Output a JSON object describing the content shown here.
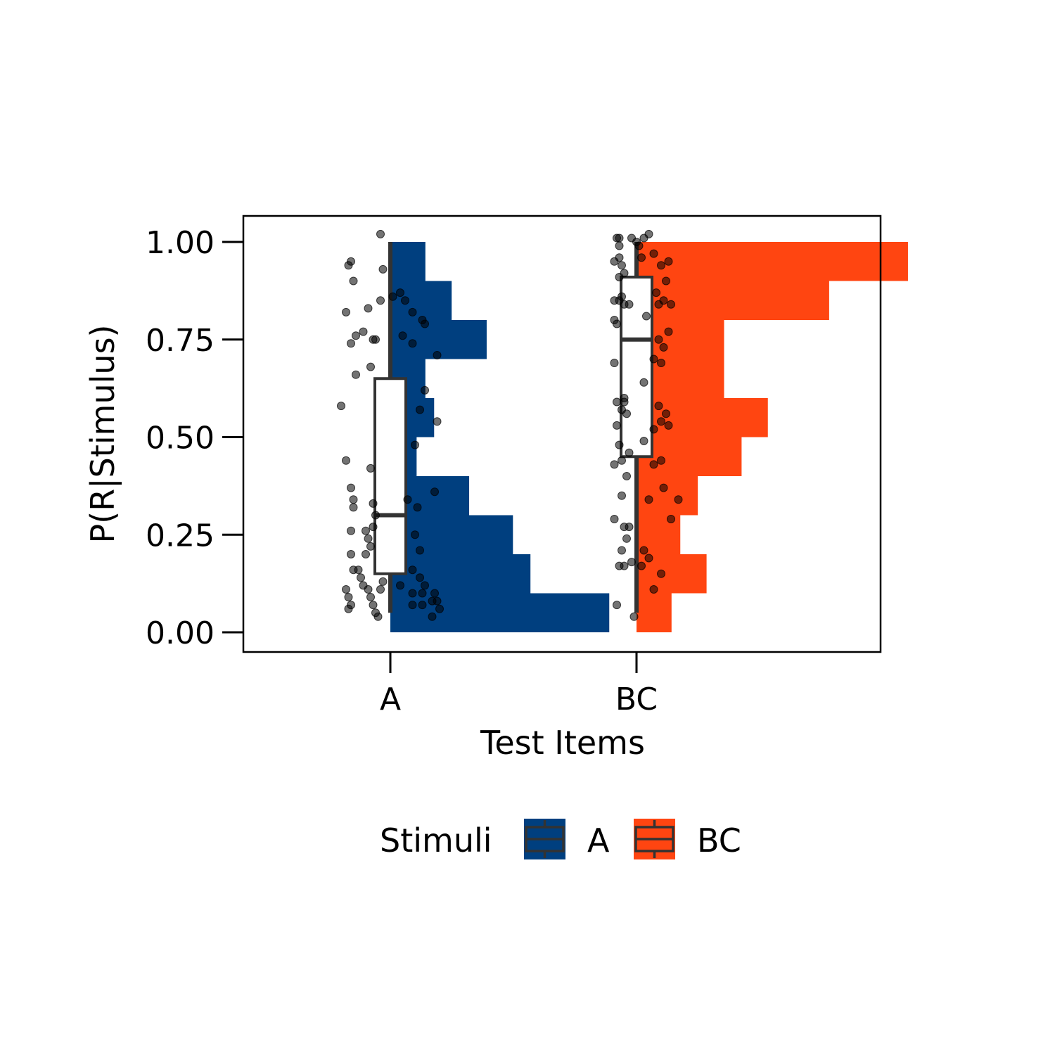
{
  "chart_data": {
    "type": "raincloud",
    "title": "",
    "xlabel": "Test Items",
    "ylabel": "P(R|Stimulus)",
    "ylim": [
      -0.05,
      1.07
    ],
    "yticks": [
      0.0,
      0.25,
      0.5,
      0.75,
      1.0
    ],
    "ytick_labels": [
      "0.00",
      "0.25",
      "0.50",
      "0.75",
      "1.00"
    ],
    "categories": [
      "A",
      "BC"
    ],
    "legend": {
      "title": "Stimuli",
      "placement": "bottom",
      "entries": [
        "A",
        "BC"
      ]
    },
    "series": [
      {
        "name": "A",
        "color": "#003f7f",
        "histogram": {
          "bin_edges": [
            0.0,
            0.1,
            0.2,
            0.3,
            0.4,
            0.5,
            0.6,
            0.7,
            0.8,
            0.9,
            1.0
          ],
          "counts": [
            25,
            16,
            14,
            9,
            3,
            5,
            4,
            11,
            7,
            4
          ]
        },
        "box": {
          "whisker_low": 0.05,
          "q1": 0.15,
          "median": 0.3,
          "q3": 0.65,
          "whisker_high": 1.0
        },
        "points": [
          {
            "x": -0.17,
            "y": 0.06
          },
          {
            "x": -0.16,
            "y": 0.07
          },
          {
            "x": -0.17,
            "y": 0.09
          },
          {
            "x": -0.18,
            "y": 0.11
          },
          {
            "x": -0.15,
            "y": 0.16
          },
          {
            "x": -0.13,
            "y": 0.16
          },
          {
            "x": -0.12,
            "y": 0.14
          },
          {
            "x": -0.11,
            "y": 0.12
          },
          {
            "x": -0.09,
            "y": 0.11
          },
          {
            "x": -0.08,
            "y": 0.09
          },
          {
            "x": -0.07,
            "y": 0.07
          },
          {
            "x": -0.05,
            "y": 0.04
          },
          {
            "x": -0.06,
            "y": 0.05
          },
          {
            "x": -0.04,
            "y": 0.11
          },
          {
            "x": -0.03,
            "y": 0.13
          },
          {
            "x": -0.1,
            "y": 0.2
          },
          {
            "x": -0.08,
            "y": 0.22
          },
          {
            "x": -0.09,
            "y": 0.24
          },
          {
            "x": -0.1,
            "y": 0.26
          },
          {
            "x": -0.07,
            "y": 0.27
          },
          {
            "x": -0.06,
            "y": 0.3
          },
          {
            "x": -0.16,
            "y": 0.26
          },
          {
            "x": -0.16,
            "y": 0.2
          },
          {
            "x": -0.15,
            "y": 0.32
          },
          {
            "x": -0.15,
            "y": 0.34
          },
          {
            "x": -0.16,
            "y": 0.37
          },
          {
            "x": -0.07,
            "y": 0.33
          },
          {
            "x": -0.18,
            "y": 0.44
          },
          {
            "x": -0.08,
            "y": 0.42
          },
          {
            "x": -0.2,
            "y": 0.58
          },
          {
            "x": -0.14,
            "y": 0.66
          },
          {
            "x": -0.08,
            "y": 0.68
          },
          {
            "x": -0.16,
            "y": 0.74
          },
          {
            "x": -0.14,
            "y": 0.76
          },
          {
            "x": -0.11,
            "y": 0.77
          },
          {
            "x": -0.07,
            "y": 0.75
          },
          {
            "x": -0.06,
            "y": 0.75
          },
          {
            "x": -0.18,
            "y": 0.82
          },
          {
            "x": -0.09,
            "y": 0.83
          },
          {
            "x": -0.04,
            "y": 0.85
          },
          {
            "x": -0.15,
            "y": 0.9
          },
          {
            "x": -0.17,
            "y": 0.94
          },
          {
            "x": -0.16,
            "y": 0.95
          },
          {
            "x": -0.03,
            "y": 0.93
          },
          {
            "x": -0.04,
            "y": 1.02
          },
          {
            "x": 0.01,
            "y": 0.86
          },
          {
            "x": 0.04,
            "y": 0.87
          },
          {
            "x": 0.06,
            "y": 0.85
          },
          {
            "x": 0.09,
            "y": 0.82
          },
          {
            "x": 0.13,
            "y": 0.8
          },
          {
            "x": 0.14,
            "y": 0.79
          },
          {
            "x": 0.05,
            "y": 0.76
          },
          {
            "x": 0.09,
            "y": 0.74
          },
          {
            "x": 0.19,
            "y": 0.71
          },
          {
            "x": 0.14,
            "y": 0.62
          },
          {
            "x": 0.12,
            "y": 0.57
          },
          {
            "x": 0.19,
            "y": 0.54
          },
          {
            "x": 0.1,
            "y": 0.48
          },
          {
            "x": 0.18,
            "y": 0.36
          },
          {
            "x": 0.07,
            "y": 0.34
          },
          {
            "x": 0.11,
            "y": 0.32
          },
          {
            "x": 0.1,
            "y": 0.25
          },
          {
            "x": 0.12,
            "y": 0.21
          },
          {
            "x": 0.09,
            "y": 0.16
          },
          {
            "x": 0.12,
            "y": 0.14
          },
          {
            "x": 0.14,
            "y": 0.12
          },
          {
            "x": 0.04,
            "y": 0.12
          },
          {
            "x": 0.09,
            "y": 0.1
          },
          {
            "x": 0.13,
            "y": 0.1
          },
          {
            "x": 0.18,
            "y": 0.1
          },
          {
            "x": 0.19,
            "y": 0.08
          },
          {
            "x": 0.17,
            "y": 0.08
          },
          {
            "x": 0.2,
            "y": 0.06
          },
          {
            "x": 0.09,
            "y": 0.07
          },
          {
            "x": 0.13,
            "y": 0.07
          },
          {
            "x": 0.17,
            "y": 0.04
          }
        ]
      },
      {
        "name": "BC",
        "color": "#ff4511",
        "histogram": {
          "bin_edges": [
            0.0,
            0.1,
            0.2,
            0.3,
            0.4,
            0.5,
            0.6,
            0.7,
            0.8,
            0.9,
            1.0
          ],
          "counts": [
            4,
            8,
            5,
            7,
            12,
            15,
            10,
            10,
            22,
            31
          ]
        },
        "box": {
          "whisker_low": 0.05,
          "q1": 0.45,
          "median": 0.75,
          "q3": 0.91,
          "whisker_high": 1.0
        },
        "points": [
          {
            "x": -0.08,
            "y": 0.07
          },
          {
            "x": -0.01,
            "y": 0.04
          },
          {
            "x": -0.05,
            "y": 0.17
          },
          {
            "x": -0.07,
            "y": 0.17
          },
          {
            "x": -0.02,
            "y": 0.18
          },
          {
            "x": -0.06,
            "y": 0.21
          },
          {
            "x": -0.04,
            "y": 0.24
          },
          {
            "x": -0.03,
            "y": 0.27
          },
          {
            "x": -0.05,
            "y": 0.27
          },
          {
            "x": -0.09,
            "y": 0.29
          },
          {
            "x": -0.06,
            "y": 0.35
          },
          {
            "x": -0.04,
            "y": 0.4
          },
          {
            "x": -0.09,
            "y": 0.43
          },
          {
            "x": -0.06,
            "y": 0.44
          },
          {
            "x": -0.03,
            "y": 0.46
          },
          {
            "x": -0.07,
            "y": 0.48
          },
          {
            "x": -0.08,
            "y": 0.53
          },
          {
            "x": -0.04,
            "y": 0.56
          },
          {
            "x": -0.06,
            "y": 0.57
          },
          {
            "x": -0.05,
            "y": 0.59
          },
          {
            "x": -0.08,
            "y": 0.59
          },
          {
            "x": -0.05,
            "y": 0.6
          },
          {
            "x": -0.09,
            "y": 0.69
          },
          {
            "x": -0.08,
            "y": 0.79
          },
          {
            "x": -0.09,
            "y": 0.8
          },
          {
            "x": -0.05,
            "y": 0.84
          },
          {
            "x": -0.03,
            "y": 0.84
          },
          {
            "x": -0.09,
            "y": 0.85
          },
          {
            "x": -0.07,
            "y": 0.85
          },
          {
            "x": -0.06,
            "y": 0.86
          },
          {
            "x": -0.07,
            "y": 0.91
          },
          {
            "x": -0.05,
            "y": 0.92
          },
          {
            "x": -0.09,
            "y": 0.95
          },
          {
            "x": -0.07,
            "y": 0.96
          },
          {
            "x": -0.06,
            "y": 0.94
          },
          {
            "x": -0.08,
            "y": 1.01
          },
          {
            "x": -0.07,
            "y": 1.01
          },
          {
            "x": -0.02,
            "y": 1.01
          },
          {
            "x": -0.07,
            "y": 0.99
          },
          {
            "x": 0.0,
            "y": 1.0
          },
          {
            "x": 0.03,
            "y": 1.01
          },
          {
            "x": 0.05,
            "y": 1.02
          },
          {
            "x": 0.01,
            "y": 0.99
          },
          {
            "x": 0.07,
            "y": 0.97
          },
          {
            "x": 0.02,
            "y": 0.96
          },
          {
            "x": 0.13,
            "y": 0.95
          },
          {
            "x": 0.1,
            "y": 0.94
          },
          {
            "x": 0.12,
            "y": 0.9
          },
          {
            "x": 0.08,
            "y": 0.87
          },
          {
            "x": 0.11,
            "y": 0.85
          },
          {
            "x": 0.14,
            "y": 0.84
          },
          {
            "x": 0.09,
            "y": 0.84
          },
          {
            "x": 0.04,
            "y": 0.81
          },
          {
            "x": 0.13,
            "y": 0.77
          },
          {
            "x": 0.09,
            "y": 0.75
          },
          {
            "x": 0.11,
            "y": 0.73
          },
          {
            "x": 0.07,
            "y": 0.7
          },
          {
            "x": 0.1,
            "y": 0.69
          },
          {
            "x": 0.03,
            "y": 0.64
          },
          {
            "x": 0.09,
            "y": 0.58
          },
          {
            "x": 0.12,
            "y": 0.56
          },
          {
            "x": 0.1,
            "y": 0.54
          },
          {
            "x": 0.13,
            "y": 0.53
          },
          {
            "x": 0.07,
            "y": 0.52
          },
          {
            "x": 0.03,
            "y": 0.49
          },
          {
            "x": 0.1,
            "y": 0.44
          },
          {
            "x": 0.07,
            "y": 0.43
          },
          {
            "x": 0.11,
            "y": 0.37
          },
          {
            "x": 0.05,
            "y": 0.34
          },
          {
            "x": 0.17,
            "y": 0.34
          },
          {
            "x": 0.14,
            "y": 0.29
          },
          {
            "x": 0.03,
            "y": 0.21
          },
          {
            "x": 0.05,
            "y": 0.19
          },
          {
            "x": 0.1,
            "y": 0.15
          },
          {
            "x": 0.07,
            "y": 0.11
          },
          {
            "x": 0.02,
            "y": 0.17
          }
        ]
      }
    ]
  }
}
